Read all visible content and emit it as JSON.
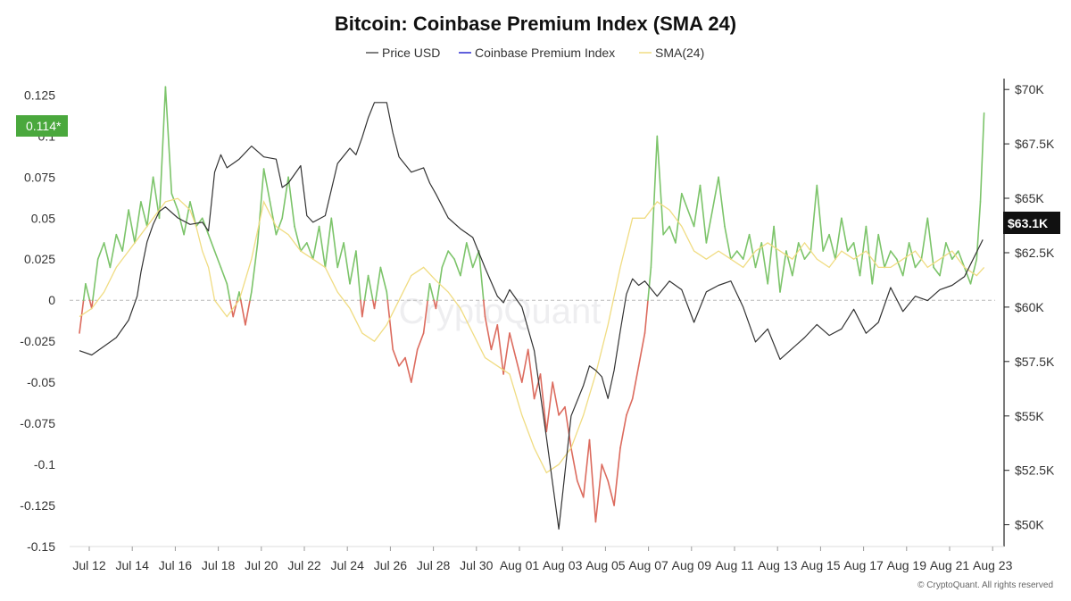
{
  "chart_data": {
    "type": "line",
    "title": "Bitcoin: Coinbase Premium Index (SMA 24)",
    "legend": [
      {
        "name": "Price USD",
        "color": "#555555"
      },
      {
        "name": "Coinbase Premium Index",
        "color": "#2b2bd1"
      },
      {
        "name": "SMA(24)",
        "color": "#f0dc82"
      }
    ],
    "legend_position": "top-center",
    "x_tick_labels": [
      "Jul 12",
      "Jul 14",
      "Jul 16",
      "Jul 18",
      "Jul 20",
      "Jul 22",
      "Jul 24",
      "Jul 26",
      "Jul 28",
      "Jul 30",
      "Aug 01",
      "Aug 03",
      "Aug 05",
      "Aug 07",
      "Aug 09",
      "Aug 11",
      "Aug 13",
      "Aug 15",
      "Aug 17",
      "Aug 19",
      "Aug 21",
      "Aug 23"
    ],
    "left_axis": {
      "ylim": [
        -0.15,
        0.135
      ],
      "tick_values": [
        0.125,
        0.1,
        0.075,
        0.05,
        0.025,
        0,
        -0.025,
        -0.05,
        -0.075,
        -0.1,
        -0.125,
        -0.15
      ],
      "tick_labels": [
        "0.125",
        "0.1",
        "0.075",
        "0.05",
        "0.025",
        "0",
        "-0.025",
        "-0.05",
        "-0.075",
        "-0.1",
        "-0.125",
        "-0.15"
      ]
    },
    "right_axis": {
      "ylim": [
        49000,
        70500
      ],
      "tick_values": [
        70000,
        67500,
        65000,
        62500,
        60000,
        57500,
        55000,
        52500,
        50000
      ],
      "tick_labels": [
        "$70K",
        "$67.5K",
        "$65K",
        "$62.5K",
        "$60K",
        "$57.5K",
        "$55K",
        "$52.5K",
        "$50K"
      ]
    },
    "badges": {
      "premium_current": "0.114*",
      "price_current": "$63.1K"
    },
    "premium_colors": {
      "positive": "#7cc46a",
      "negative": "#dc6b5e"
    },
    "price_color": "#333333",
    "sma_color": "#f0dc82",
    "series": [
      {
        "name": "Price USD",
        "axis": "right",
        "x": [
          0,
          1,
          2,
          3,
          4,
          4.7,
          5,
          5.5,
          6,
          6.5,
          7,
          8,
          9,
          10,
          10.5,
          11,
          11.5,
          12,
          13,
          14,
          15,
          16,
          16.5,
          17,
          18,
          18.5,
          19,
          20,
          21,
          22,
          22.5,
          23,
          23.5,
          24,
          25,
          25.5,
          26,
          27,
          28,
          28.5,
          29,
          30,
          31,
          32,
          33,
          34,
          34.5,
          35,
          36,
          37,
          38,
          39,
          40,
          41,
          41.5,
          42,
          42.5,
          43,
          43.5,
          44,
          44.5,
          45,
          45.5,
          46,
          47,
          48,
          49,
          50,
          51,
          52,
          53,
          54,
          55,
          56,
          57,
          58,
          59,
          60,
          61,
          62,
          63,
          64,
          65,
          66,
          67,
          68,
          69,
          70,
          71,
          72,
          73.5
        ],
        "values": [
          58000,
          57800,
          58200,
          58600,
          59400,
          60500,
          61600,
          63000,
          63800,
          64400,
          64600,
          64100,
          63800,
          63900,
          63500,
          66200,
          67000,
          66400,
          66800,
          67400,
          66900,
          66800,
          65500,
          65700,
          66500,
          64200,
          63900,
          64200,
          66600,
          67300,
          67000,
          67800,
          68700,
          69400,
          69400,
          68000,
          66900,
          66200,
          66400,
          65700,
          65200,
          64100,
          63600,
          63200,
          61800,
          60500,
          60200,
          60800,
          60000,
          58000,
          54000,
          49800,
          55000,
          56400,
          57300,
          57100,
          56800,
          55800,
          57100,
          58900,
          60600,
          61300,
          61000,
          61200,
          60500,
          61200,
          60800,
          59300,
          60700,
          61000,
          61200,
          60000,
          58400,
          59000,
          57600,
          58100,
          58600,
          59200,
          58700,
          59000,
          59900,
          58800,
          59300,
          60900,
          59800,
          60500,
          60300,
          60800,
          61000,
          61400,
          63100
        ]
      },
      {
        "name": "Coinbase Premium Index",
        "axis": "left",
        "x": [
          0,
          0.5,
          1,
          1.5,
          2,
          2.5,
          3,
          3.5,
          4,
          4.5,
          5,
          5.5,
          6,
          6.5,
          7,
          7.5,
          8,
          8.5,
          9,
          9.5,
          10,
          10.5,
          11,
          11.5,
          12,
          12.5,
          13,
          13.5,
          14,
          14.5,
          15,
          15.5,
          16,
          16.5,
          17,
          17.5,
          18,
          18.5,
          19,
          19.5,
          20,
          20.5,
          21,
          21.5,
          22,
          22.5,
          23,
          23.5,
          24,
          24.5,
          25,
          25.5,
          26,
          26.5,
          27,
          27.5,
          28,
          28.5,
          29,
          29.5,
          30,
          30.5,
          31,
          31.5,
          32,
          32.5,
          33,
          33.5,
          34,
          34.5,
          35,
          35.5,
          36,
          36.5,
          37,
          37.5,
          38,
          38.5,
          39,
          39.5,
          40,
          40.5,
          41,
          41.5,
          42,
          42.5,
          43,
          43.5,
          44,
          44.5,
          45,
          45.5,
          46,
          46.5,
          47,
          47.5,
          48,
          48.5,
          49,
          49.5,
          50,
          50.5,
          51,
          51.5,
          52,
          52.5,
          53,
          53.5,
          54,
          54.5,
          55,
          55.5,
          56,
          56.5,
          57,
          57.5,
          58,
          58.5,
          59,
          59.5,
          60,
          60.5,
          61,
          61.5,
          62,
          62.5,
          63,
          63.5,
          64,
          64.5,
          65,
          65.5,
          66,
          66.5,
          67,
          67.5,
          68,
          68.5,
          69,
          69.5,
          70,
          70.5,
          71,
          71.5,
          72,
          72.5,
          73,
          73.3,
          73.6
        ],
        "values": [
          -0.02,
          0.01,
          -0.005,
          0.025,
          0.035,
          0.02,
          0.04,
          0.03,
          0.055,
          0.035,
          0.06,
          0.045,
          0.075,
          0.05,
          0.13,
          0.065,
          0.055,
          0.04,
          0.06,
          0.045,
          0.05,
          0.04,
          0.03,
          0.02,
          0.01,
          -0.01,
          0.005,
          -0.015,
          0.005,
          0.035,
          0.08,
          0.06,
          0.04,
          0.05,
          0.075,
          0.045,
          0.03,
          0.035,
          0.025,
          0.045,
          0.02,
          0.05,
          0.02,
          0.035,
          0.01,
          0.03,
          -0.01,
          0.015,
          -0.005,
          0.02,
          0.005,
          -0.03,
          -0.04,
          -0.035,
          -0.05,
          -0.03,
          -0.02,
          0.01,
          -0.005,
          0.02,
          0.03,
          0.025,
          0.015,
          0.035,
          0.02,
          0.03,
          -0.01,
          -0.03,
          -0.015,
          -0.045,
          -0.02,
          -0.035,
          -0.05,
          -0.03,
          -0.06,
          -0.045,
          -0.08,
          -0.05,
          -0.07,
          -0.065,
          -0.09,
          -0.11,
          -0.12,
          -0.085,
          -0.135,
          -0.1,
          -0.11,
          -0.125,
          -0.09,
          -0.07,
          -0.06,
          -0.04,
          -0.02,
          0.02,
          0.1,
          0.04,
          0.045,
          0.035,
          0.065,
          0.055,
          0.045,
          0.07,
          0.035,
          0.055,
          0.075,
          0.045,
          0.025,
          0.03,
          0.025,
          0.04,
          0.02,
          0.035,
          0.01,
          0.045,
          0.005,
          0.03,
          0.015,
          0.035,
          0.025,
          0.03,
          0.07,
          0.03,
          0.04,
          0.025,
          0.05,
          0.03,
          0.035,
          0.015,
          0.045,
          0.01,
          0.04,
          0.02,
          0.03,
          0.025,
          0.015,
          0.035,
          0.02,
          0.025,
          0.05,
          0.02,
          0.015,
          0.035,
          0.025,
          0.03,
          0.02,
          0.01,
          0.025,
          0.06,
          0.114
        ]
      },
      {
        "name": "SMA(24)",
        "axis": "left",
        "x": [
          0,
          1,
          2,
          3,
          4,
          5,
          6,
          7,
          8,
          9,
          9.5,
          10,
          10.5,
          11,
          12,
          13,
          14,
          15,
          16,
          17,
          18,
          19,
          20,
          21,
          22,
          23,
          24,
          25,
          26,
          27,
          28,
          29,
          30,
          31,
          32,
          33,
          34,
          35,
          36,
          37,
          38,
          39,
          40,
          41,
          42,
          43,
          44,
          45,
          46,
          47,
          48,
          49,
          50,
          51,
          52,
          53,
          54,
          55,
          56,
          57,
          58,
          59,
          60,
          61,
          62,
          63,
          64,
          65,
          66,
          67,
          68,
          69,
          70,
          71,
          72,
          73,
          73.6
        ],
        "values": [
          -0.01,
          -0.005,
          0.005,
          0.02,
          0.03,
          0.04,
          0.05,
          0.06,
          0.062,
          0.055,
          0.045,
          0.03,
          0.02,
          0.0,
          -0.01,
          0.0,
          0.025,
          0.06,
          0.045,
          0.04,
          0.03,
          0.025,
          0.02,
          0.005,
          -0.005,
          -0.02,
          -0.025,
          -0.015,
          0.0,
          0.015,
          0.02,
          0.012,
          0.005,
          -0.005,
          -0.02,
          -0.035,
          -0.04,
          -0.045,
          -0.07,
          -0.09,
          -0.105,
          -0.1,
          -0.09,
          -0.07,
          -0.045,
          -0.015,
          0.02,
          0.05,
          0.05,
          0.06,
          0.055,
          0.045,
          0.03,
          0.025,
          0.03,
          0.025,
          0.02,
          0.03,
          0.035,
          0.03,
          0.025,
          0.035,
          0.025,
          0.02,
          0.03,
          0.025,
          0.03,
          0.02,
          0.02,
          0.025,
          0.03,
          0.02,
          0.025,
          0.03,
          0.02,
          0.015,
          0.02
        ]
      }
    ]
  },
  "watermark": "CryptoQuant",
  "copyright": "© CryptoQuant. All rights reserved"
}
